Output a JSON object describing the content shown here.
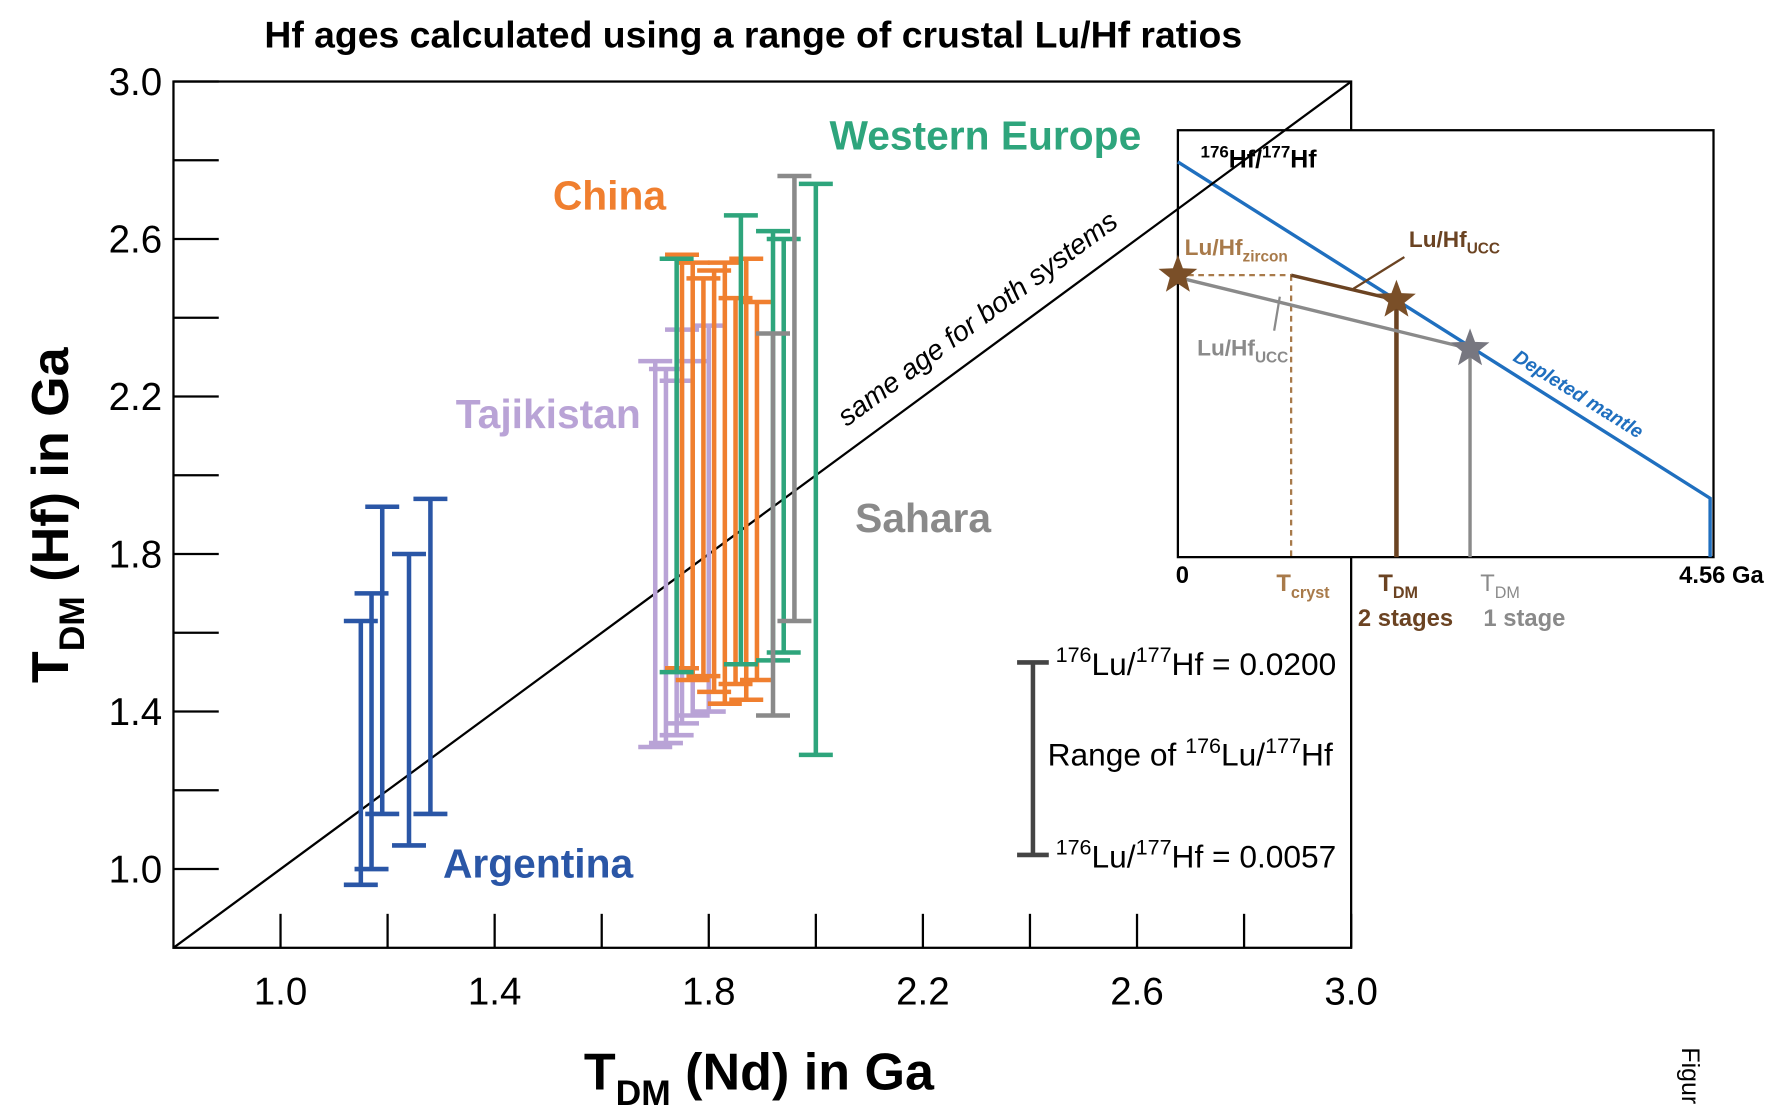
{
  "chart_data": {
    "type": "errorbar",
    "title": "Hf ages calculated using a range of crustal Lu/Hf ratios",
    "xlabel": {
      "main": "T",
      "sub": "DM",
      "rest": " (Nd) in Ga"
    },
    "ylabel": {
      "main": "T",
      "sub": "DM",
      "rest": " (Hf) in Ga"
    },
    "xlim": [
      0.8,
      3.0
    ],
    "ylim": [
      0.8,
      3.0
    ],
    "xticks": [
      {
        "value": 1.0,
        "label": "1.0"
      },
      {
        "value": 1.4,
        "label": "1.4"
      },
      {
        "value": 1.8,
        "label": "1.8"
      },
      {
        "value": 2.2,
        "label": "2.2"
      },
      {
        "value": 2.6,
        "label": "2.6"
      },
      {
        "value": 3.0,
        "label": "3.0"
      }
    ],
    "yticks": [
      {
        "value": 1.0,
        "label": "1.0"
      },
      {
        "value": 1.4,
        "label": "1.4"
      },
      {
        "value": 1.8,
        "label": "1.8"
      },
      {
        "value": 2.2,
        "label": "2.2"
      },
      {
        "value": 2.6,
        "label": "2.6"
      },
      {
        "value": 3.0,
        "label": "3.0"
      }
    ],
    "x_minor_ticks": [
      1.2,
      1.6,
      2.0,
      2.4,
      2.8
    ],
    "y_minor_ticks": [
      1.2,
      1.6,
      2.0,
      2.4,
      2.8
    ],
    "series": [
      {
        "name": "Argentina",
        "color": "#2a56a6",
        "x": [
          1.15,
          1.17,
          1.19,
          1.24,
          1.28
        ],
        "low": [
          0.96,
          1.0,
          1.14,
          1.06,
          1.14
        ],
        "high": [
          1.63,
          1.7,
          1.92,
          1.8,
          1.94
        ]
      },
      {
        "name": "Tajikistan",
        "color": "#b9a3d6",
        "x": [
          1.7,
          1.72,
          1.74,
          1.75,
          1.77,
          1.8
        ],
        "low": [
          1.31,
          1.32,
          1.34,
          1.37,
          1.39,
          1.4
        ],
        "high": [
          2.29,
          2.27,
          2.24,
          2.37,
          2.29,
          2.38
        ]
      },
      {
        "name": "China",
        "color": "#f07f2f",
        "x": [
          1.75,
          1.77,
          1.79,
          1.81,
          1.83,
          1.85,
          1.87,
          1.89
        ],
        "low": [
          1.51,
          1.48,
          1.49,
          1.45,
          1.42,
          1.47,
          1.43,
          1.48
        ],
        "high": [
          2.56,
          2.54,
          2.5,
          2.52,
          2.54,
          2.45,
          2.55,
          2.44
        ]
      },
      {
        "name": "Western Europe",
        "color": "#2ea57c",
        "x": [
          1.74,
          1.86,
          1.92,
          1.94,
          2.0
        ],
        "low": [
          1.5,
          1.52,
          1.53,
          1.55,
          1.29
        ],
        "high": [
          2.55,
          2.66,
          2.62,
          2.6,
          2.74
        ]
      },
      {
        "name": "Sahara",
        "color": "#8a8a8a",
        "x": [
          1.92,
          1.96
        ],
        "low": [
          1.39,
          1.63
        ],
        "high": [
          2.36,
          2.76
        ]
      }
    ],
    "diagonal_label": "same age for both systems",
    "range_key": {
      "top": {
        "sup1": "176",
        "t1": "Lu/",
        "sup2": "177",
        "t2": "Hf = 0.0200"
      },
      "middle": {
        "t0": "Range of ",
        "sup1": "176",
        "t1": "Lu/",
        "sup2": "177",
        "t2": "Hf"
      },
      "bottom": {
        "sup1": "176",
        "t1": "Lu/",
        "sup2": "177",
        "t2": "Hf = 0.0057"
      }
    },
    "inset": {
      "ylabel": {
        "sup1": "176",
        "t1": "Hf/",
        "sup2": "177",
        "t2": "Hf"
      },
      "lu_hf_zircon": {
        "main": "Lu/Hf",
        "sub": "zircon"
      },
      "lu_hf_ucc_brown": {
        "main": "Lu/Hf",
        "sub": "UCC"
      },
      "lu_hf_ucc_gray": {
        "main": "Lu/Hf",
        "sub": "UCC"
      },
      "depleted_mantle": "Depleted mantle",
      "x_zero": "0",
      "x_end": "4.56 Ga",
      "t_cryst": {
        "main": "T",
        "sub": "cryst"
      },
      "t_dm2": {
        "main": "T",
        "sub": "DM",
        "line2": "2 stages"
      },
      "t_dm1": {
        "main": "T",
        "sub": "DM",
        "line2": "1 stage"
      }
    },
    "side_note": "Figur"
  }
}
